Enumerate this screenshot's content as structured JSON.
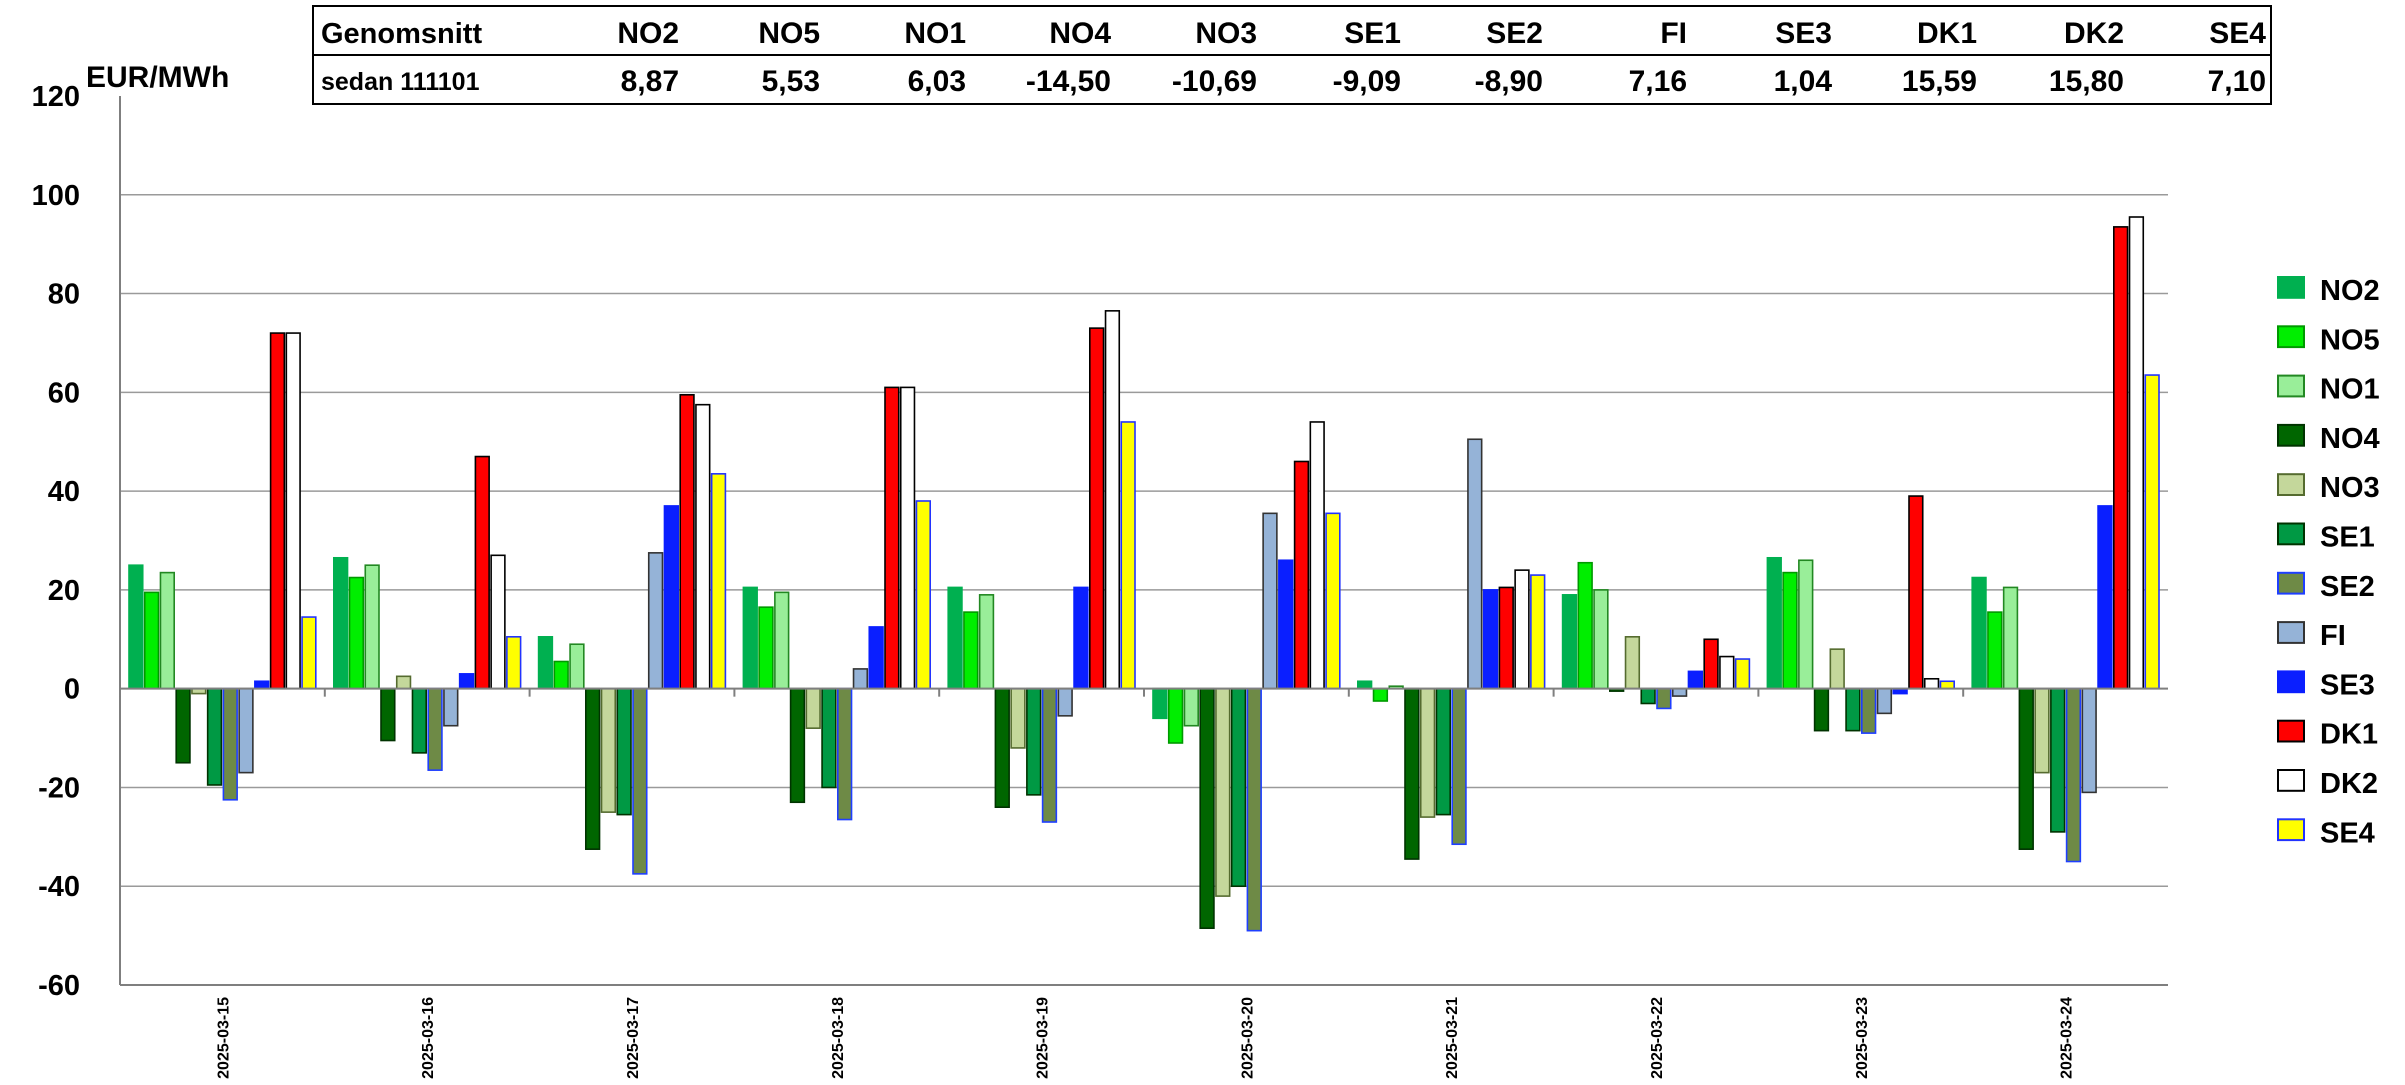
{
  "chart_data": {
    "type": "bar",
    "ylabel": "EUR/MWh",
    "ylim": [
      -60,
      120
    ],
    "yticks": [
      -60,
      -40,
      -20,
      0,
      20,
      40,
      60,
      80,
      100,
      120
    ],
    "grid": true,
    "legend_position": "right",
    "categories": [
      "2025-03-15",
      "2025-03-16",
      "2025-03-17",
      "2025-03-18",
      "2025-03-19",
      "2025-03-20",
      "2025-03-21",
      "2025-03-22",
      "2025-03-23",
      "2025-03-24"
    ],
    "series": [
      {
        "name": "NO2",
        "color": "#00b050",
        "border": "#00b050",
        "values": [
          25,
          26.5,
          10.5,
          20.5,
          20.5,
          -6,
          1.5,
          19,
          26.5,
          22.5
        ]
      },
      {
        "name": "NO5",
        "color": "#00ee00",
        "border": "#009900",
        "values": [
          19.5,
          22.5,
          5.5,
          16.5,
          15.5,
          -11,
          -2.5,
          25.5,
          23.5,
          15.5
        ]
      },
      {
        "name": "NO1",
        "color": "#99ee99",
        "border": "#228822",
        "values": [
          23.5,
          25,
          9,
          19.5,
          19,
          -7.5,
          0.5,
          20,
          26,
          20.5
        ]
      },
      {
        "name": "NO4",
        "color": "#006600",
        "border": "#003300",
        "values": [
          -15,
          -10.5,
          -32.5,
          -23,
          -24,
          -48.5,
          -34.5,
          -0.5,
          -8.5,
          -32.5
        ]
      },
      {
        "name": "NO3",
        "color": "#c4d79b",
        "border": "#556b2f",
        "values": [
          -1,
          2.5,
          -25,
          -8,
          -12,
          -42,
          -26,
          10.5,
          8,
          -17
        ]
      },
      {
        "name": "SE1",
        "color": "#009944",
        "border": "#003300",
        "values": [
          -19.5,
          -13,
          -25.5,
          -20,
          -21.5,
          -40,
          -25.5,
          -3,
          -8.5,
          -29
        ]
      },
      {
        "name": "SE2",
        "color": "#6e8a46",
        "border": "#1f3fff",
        "values": [
          -22.5,
          -16.5,
          -37.5,
          -26.5,
          -27,
          -49,
          -31.5,
          -4,
          -9,
          -35
        ]
      },
      {
        "name": "FI",
        "color": "#95b3d7",
        "border": "#333333",
        "values": [
          -17,
          -7.5,
          27.5,
          4,
          -5.5,
          35.5,
          50.5,
          -1.5,
          -5,
          -21
        ]
      },
      {
        "name": "SE3",
        "color": "#0a1fff",
        "border": "#0a1fff",
        "values": [
          1.5,
          3,
          37,
          12.5,
          20.5,
          26,
          20,
          3.5,
          -1,
          37
        ]
      },
      {
        "name": "DK1",
        "color": "#ff0000",
        "border": "#000000",
        "values": [
          72,
          47,
          59.5,
          61,
          73,
          46,
          20.5,
          10,
          39,
          93.5
        ]
      },
      {
        "name": "DK2",
        "color": "#ffffff",
        "border": "#000000",
        "values": [
          72,
          27,
          57.5,
          61,
          76.5,
          54,
          24,
          6.5,
          2,
          95.5
        ]
      },
      {
        "name": "SE4",
        "color": "#ffff00",
        "border": "#2233ff",
        "values": [
          14.5,
          10.5,
          43.5,
          38,
          54,
          35.5,
          23,
          6,
          1.5,
          63.5
        ]
      }
    ]
  },
  "summary_table": {
    "header_label": "Genomsnitt",
    "row_label": "sedan 111101",
    "columns": [
      "NO2",
      "NO5",
      "NO1",
      "NO4",
      "NO3",
      "SE1",
      "SE2",
      "FI",
      "SE3",
      "DK1",
      "DK2",
      "SE4"
    ],
    "values": [
      "8,87",
      "5,53",
      "6,03",
      "-14,50",
      "-10,69",
      "-9,09",
      "-8,90",
      "7,16",
      "1,04",
      "15,59",
      "15,80",
      "7,10"
    ]
  }
}
